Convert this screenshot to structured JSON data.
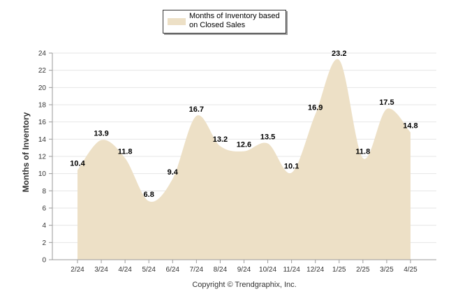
{
  "chart_data": {
    "type": "area",
    "categories": [
      "2/24",
      "3/24",
      "4/24",
      "5/24",
      "6/24",
      "7/24",
      "8/24",
      "9/24",
      "10/24",
      "11/24",
      "12/24",
      "1/25",
      "2/25",
      "3/25",
      "4/25"
    ],
    "series": [
      {
        "name": "Months of Inventory based on Closed Sales",
        "values": [
          10.4,
          13.9,
          11.8,
          6.8,
          9.4,
          16.7,
          13.2,
          12.6,
          13.5,
          10.1,
          16.9,
          23.2,
          11.8,
          17.5,
          14.8
        ],
        "data_labels": [
          "10.4",
          "13.9",
          "11.8",
          "6.8",
          "9.4",
          "16.7",
          "13.2",
          "12.6",
          "13.5",
          "10.1",
          "16.9",
          "23.2",
          "11.8",
          "17.5",
          "14.8"
        ]
      }
    ],
    "title": "",
    "xlabel": "",
    "ylabel": "Months of Inventory",
    "ylim": [
      0,
      24
    ],
    "yticks": [
      "0",
      "2",
      "4",
      "6",
      "8",
      "10",
      "12",
      "14",
      "16",
      "18",
      "20",
      "22",
      "24"
    ],
    "grid": true,
    "legend_position": "top-center"
  },
  "legend": {
    "label": "Months of Inventory based on Closed Sales"
  },
  "footer": {
    "copyright": "Copyright © Trendgraphix, Inc."
  },
  "colors": {
    "fill": "#ede0c6",
    "grid": "#e6e6e6",
    "axis": "#9a9a9a",
    "tick_text": "#333333",
    "label_text": "#000000"
  }
}
